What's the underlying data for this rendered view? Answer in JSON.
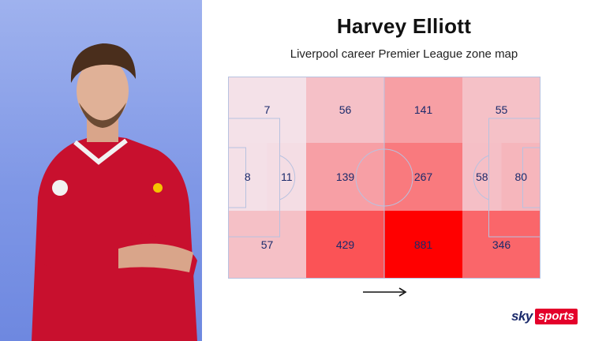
{
  "header": {
    "title": "Harvey Elliott",
    "subtitle": "Liverpool career Premier League zone map"
  },
  "logo": {
    "sky": "sky",
    "sports": "sports"
  },
  "colors": {
    "zone_low": "#f3eef6",
    "zone_high": "#ff0000",
    "number": "#1b2a6b",
    "background_left": "#8fa5ea"
  },
  "chart_data": {
    "type": "heatmap",
    "title": "Harvey Elliott",
    "subtitle": "Liverpool career Premier League zone map",
    "direction": "left-to-right",
    "rows": 3,
    "cols": 6,
    "zones": [
      {
        "row": 0,
        "col": 0,
        "value": 7
      },
      {
        "row": 0,
        "col": 1,
        "value": 56
      },
      {
        "row": 0,
        "col": 2,
        "value": 141
      },
      {
        "row": 0,
        "col": 3,
        "value": 55
      },
      {
        "row": 1,
        "col": 0,
        "value": 8
      },
      {
        "row": 1,
        "col": 1,
        "value": 11
      },
      {
        "row": 1,
        "col": 2,
        "value": 139
      },
      {
        "row": 1,
        "col": 3,
        "value": 267
      },
      {
        "row": 1,
        "col": 4,
        "value": 58
      },
      {
        "row": 1,
        "col": 5,
        "value": 80
      },
      {
        "row": 2,
        "col": 0,
        "value": 57
      },
      {
        "row": 2,
        "col": 1,
        "value": 429
      },
      {
        "row": 2,
        "col": 2,
        "value": 881
      },
      {
        "row": 2,
        "col": 3,
        "value": 346
      }
    ],
    "max_value": 881
  }
}
